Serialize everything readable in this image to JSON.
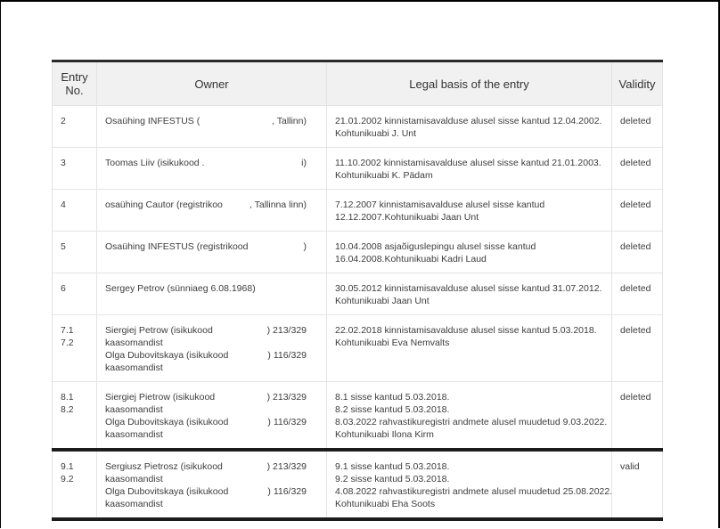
{
  "colors": {
    "text": "#3c3c3c",
    "header_background": "#f1f1f1",
    "light_separator": "#e4e4e4",
    "heavy_border": "#1c1c1c"
  },
  "table": {
    "header": {
      "entry_no": "Entry No.",
      "owner": "Owner",
      "legal_basis": "Legal basis of the entry",
      "validity": "Validity"
    },
    "valid_label": "valid",
    "rows": [
      {
        "no": "2",
        "owner": [
          {
            "text": "Osaühing INFESTUS (",
            "tail": ", Tallinn)"
          }
        ],
        "legal": "21.01.2002 kinnistamisavalduse alusel sisse kantud 12.04.2002.\nKohtunikuabi J. Unt",
        "validity": "deleted"
      },
      {
        "no": "3",
        "owner": [
          {
            "text": "Toomas Liiv (isikukood .",
            "tail": "i)"
          }
        ],
        "legal": "11.10.2002 kinnistamisavalduse alusel sisse kantud 21.01.2003.\nKohtunikuabi K. Pädam",
        "validity": "deleted"
      },
      {
        "no": "4",
        "owner": [
          {
            "text": "osaühing Cautor (registrikoo",
            "tail": ", Tallinna linn)"
          }
        ],
        "legal": "7.12.2007 kinnistamisavalduse alusel sisse kantud\n12.12.2007.Kohtunikuabi Jaan Unt",
        "validity": "deleted"
      },
      {
        "no": "5",
        "owner": [
          {
            "text": "Osaühing INFESTUS (registrikood",
            "tail": ")"
          }
        ],
        "legal": "10.04.2008 asjaõiguslepingu alusel sisse kantud\n16.04.2008.Kohtunikuabi Kadri Laud",
        "validity": "deleted"
      },
      {
        "no": "6",
        "owner": [
          {
            "text": "Sergey Petrov (sünniaeg 6.08.1968)"
          }
        ],
        "legal": "30.05.2012 kinnistamisavalduse alusel sisse kantud 31.07.2012.\nKohtunikuabi Jaan Unt",
        "validity": "deleted"
      },
      {
        "no": "7.1\n7.2",
        "owner": [
          {
            "text": "Siergiej Petrow (isikukood",
            "tail": ") 213/329"
          },
          {
            "text": "kaasomandist"
          },
          {
            "text": "Olga Dubovitskaya (isikukood",
            "tail": ") 116/329"
          },
          {
            "text": "kaasomandist"
          }
        ],
        "legal": "22.02.2018 kinnistamisavalduse alusel sisse kantud 5.03.2018.\nKohtunikuabi Eva Nemvalts",
        "validity": "deleted"
      },
      {
        "no": "8.1\n8.2",
        "owner": [
          {
            "text": "Siergiej Pietrow (isikukood",
            "tail": ") 213/329"
          },
          {
            "text": "kaasomandist"
          },
          {
            "text": "Olga Dubovitskaya (isikukood",
            "tail": ") 116/329"
          },
          {
            "text": "kaasomandist"
          }
        ],
        "legal": "8.1 sisse kantud 5.03.2018.\n8.2 sisse kantud 5.03.2018.\n8.03.2022 rahvastikuregistri andmete alusel muudetud 9.03.2022.\nKohtunikuabi Ilona Kirm",
        "validity": "deleted"
      },
      {
        "no": "9.1\n9.2",
        "owner": [
          {
            "text": "Sergiusz Pietrosz (isikukood",
            "tail": ") 213/329"
          },
          {
            "text": "kaasomandist"
          },
          {
            "text": "Olga Dubovitskaya (isikukood",
            "tail": ") 116/329"
          },
          {
            "text": "kaasomandist"
          }
        ],
        "legal": "9.1 sisse kantud 5.03.2018.\n9.2 sisse kantud 5.03.2018.\n4.08.2022 rahvastikuregistri andmete alusel muudetud 25.08.2022.\nKohtunikuabi Eha Soots",
        "validity": "valid"
      }
    ]
  }
}
